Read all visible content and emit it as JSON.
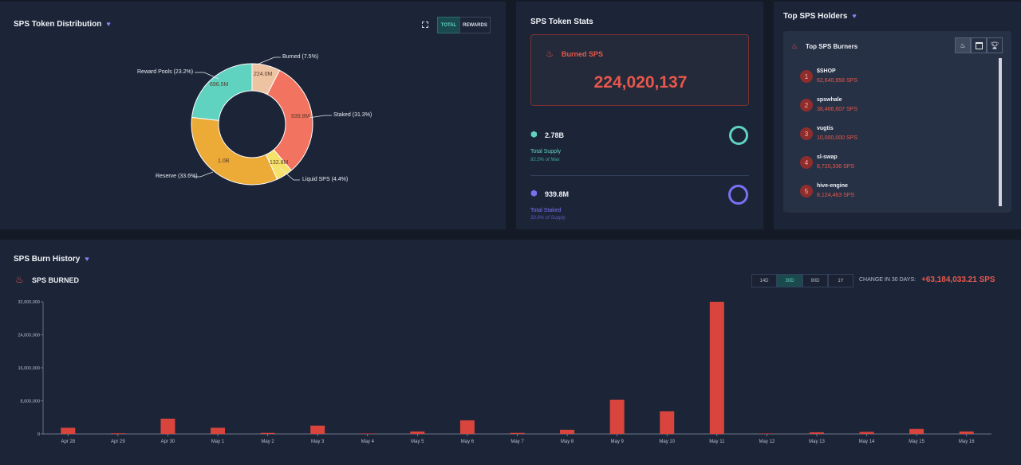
{
  "distribution": {
    "title": "SPS Token Distribution",
    "buttons": [
      "TOTAL",
      "REWARDS"
    ],
    "segments": [
      {
        "name": "Burned",
        "label": "Burned (7.5%)",
        "value_label": "224.0M",
        "percent": 7.5,
        "color": "#eec3a2"
      },
      {
        "name": "Staked",
        "label": "Staked (31.3%)",
        "value_label": "939.8M",
        "percent": 31.3,
        "color": "#f2735f"
      },
      {
        "name": "Liquid SPS",
        "label": "Liquid SPS (4.4%)",
        "value_label": "132.8M",
        "percent": 4.4,
        "color": "#f6e26b"
      },
      {
        "name": "Reserve",
        "label": "Reserve (33.6%)",
        "value_label": "1.0B",
        "percent": 33.6,
        "color": "#ecaa37"
      },
      {
        "name": "Reward Pools",
        "label": "Reward Pools (23.2%)",
        "value_label": "696.5M",
        "percent": 23.2,
        "color": "#5fd3bf"
      }
    ]
  },
  "stats": {
    "title": "SPS Token Stats",
    "burned_label": "Burned SPS",
    "burned_value": "224,020,137",
    "supply_value": "2.78B",
    "supply_name": "Total Supply",
    "supply_sub": "92.5% of Max",
    "staked_value": "939.8M",
    "staked_name": "Total Staked",
    "staked_sub": "33.9% of Supply"
  },
  "holders": {
    "title": "Top SPS Holders",
    "card_title": "Top SPS Burners",
    "burners": [
      {
        "rank": "1",
        "name": "$SHOP",
        "amount": "62,640,958 SPS"
      },
      {
        "rank": "2",
        "name": "spswhale",
        "amount": "38,466,607 SPS"
      },
      {
        "rank": "3",
        "name": "vugtis",
        "amount": "10,000,000 SPS"
      },
      {
        "rank": "4",
        "name": "sl-swap",
        "amount": "8,720,336 SPS"
      },
      {
        "rank": "5",
        "name": "hive-engine",
        "amount": "8,124,463 SPS"
      }
    ]
  },
  "burn_history": {
    "title": "SPS Burn History",
    "subtitle": "SPS BURNED",
    "ranges": [
      "14D",
      "30D",
      "90D",
      "1Y"
    ],
    "active_range": "30D",
    "change_label": "CHANGE IN 30 DAYS:",
    "change_value": "+63,184,033.21 SPS"
  },
  "chart_data": {
    "type": "bar",
    "categories": [
      "Apr 28",
      "Apr 29",
      "Apr 30",
      "May 1",
      "May 2",
      "May 3",
      "May 4",
      "May 5",
      "May 6",
      "May 7",
      "May 8",
      "May 9",
      "May 10",
      "May 11",
      "May 12",
      "May 13",
      "May 14",
      "May 15",
      "May 16"
    ],
    "values": [
      1500000,
      150000,
      3700000,
      1500000,
      250000,
      2000000,
      100000,
      600000,
      3300000,
      250000,
      1000000,
      8300000,
      5500000,
      32000000,
      100000,
      400000,
      500000,
      1200000,
      600000
    ],
    "yticks": [
      "0",
      "8,000,000",
      "16,000,000",
      "24,000,000",
      "32,000,000"
    ],
    "ylim": [
      0,
      32000000
    ],
    "bar_color": "#d9443c"
  },
  "colors": {
    "accent": "#5fd3c1",
    "burn": "#e8574c",
    "purple": "#7b6ff2"
  }
}
